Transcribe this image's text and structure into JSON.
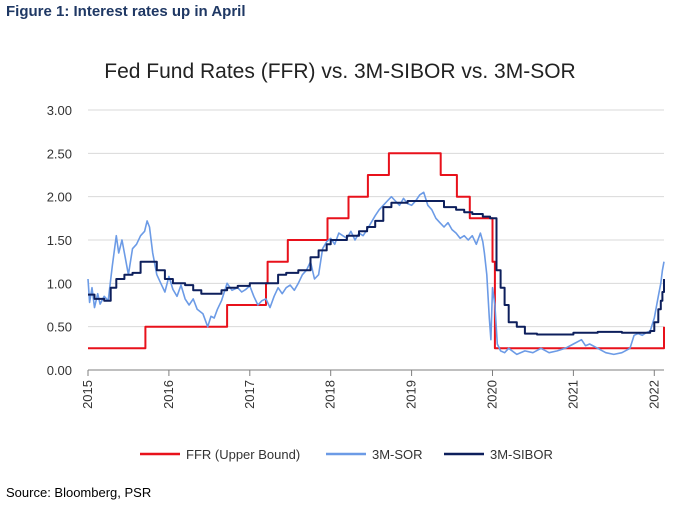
{
  "figure": {
    "title": "Figure 1: Interest rates up in April",
    "source": "Source: Bloomberg, PSR"
  },
  "chart_data": {
    "type": "line",
    "title": "Fed Fund Rates (FFR) vs. 3M-SIBOR vs. 3M-SOR",
    "xlabel": "",
    "ylabel": "",
    "xlim": [
      2015.0,
      2022.12
    ],
    "ylim": [
      0,
      3
    ],
    "y_ticks": [
      "0.00",
      "0.50",
      "1.00",
      "1.50",
      "2.00",
      "2.50",
      "3.00"
    ],
    "x_ticks": [
      "2015",
      "2016",
      "2017",
      "2018",
      "2019",
      "2020",
      "2021",
      "2022"
    ],
    "grid": "horizontal",
    "legend": "bottom",
    "series": [
      {
        "name": "FFR (Upper Bound)",
        "color": "#e8111b",
        "step": true,
        "points": [
          [
            2015.0,
            0.25
          ],
          [
            2015.71,
            0.5
          ],
          [
            2016.72,
            0.75
          ],
          [
            2017.0,
            0.75
          ],
          [
            2017.2,
            1.0
          ],
          [
            2017.22,
            1.25
          ],
          [
            2017.46,
            1.25
          ],
          [
            2017.47,
            1.5
          ],
          [
            2017.95,
            1.5
          ],
          [
            2017.96,
            1.75
          ],
          [
            2018.22,
            2.0
          ],
          [
            2018.46,
            2.25
          ],
          [
            2018.72,
            2.5
          ],
          [
            2019.35,
            2.5
          ],
          [
            2019.36,
            2.25
          ],
          [
            2019.56,
            2.0
          ],
          [
            2019.58,
            2.0
          ],
          [
            2019.72,
            1.75
          ],
          [
            2019.83,
            1.75
          ],
          [
            2019.97,
            1.75
          ],
          [
            2020.0,
            1.25
          ],
          [
            2020.03,
            0.25
          ],
          [
            2022.0,
            0.25
          ],
          [
            2022.12,
            0.5
          ]
        ]
      },
      {
        "name": "3M-SOR",
        "color": "#6c9be6",
        "step": false,
        "points": [
          [
            2015.0,
            1.05
          ],
          [
            2015.02,
            0.78
          ],
          [
            2015.05,
            0.95
          ],
          [
            2015.08,
            0.72
          ],
          [
            2015.12,
            0.88
          ],
          [
            2015.15,
            0.76
          ],
          [
            2015.2,
            0.85
          ],
          [
            2015.25,
            0.8
          ],
          [
            2015.3,
            1.2
          ],
          [
            2015.35,
            1.55
          ],
          [
            2015.38,
            1.35
          ],
          [
            2015.42,
            1.5
          ],
          [
            2015.46,
            1.3
          ],
          [
            2015.5,
            1.1
          ],
          [
            2015.55,
            1.4
          ],
          [
            2015.6,
            1.45
          ],
          [
            2015.65,
            1.55
          ],
          [
            2015.7,
            1.6
          ],
          [
            2015.73,
            1.72
          ],
          [
            2015.76,
            1.65
          ],
          [
            2015.8,
            1.35
          ],
          [
            2015.85,
            1.1
          ],
          [
            2015.9,
            1.0
          ],
          [
            2015.95,
            0.9
          ],
          [
            2016.0,
            1.08
          ],
          [
            2016.05,
            0.93
          ],
          [
            2016.1,
            0.85
          ],
          [
            2016.15,
            0.98
          ],
          [
            2016.2,
            0.82
          ],
          [
            2016.25,
            0.75
          ],
          [
            2016.3,
            0.82
          ],
          [
            2016.35,
            0.7
          ],
          [
            2016.42,
            0.65
          ],
          [
            2016.48,
            0.5
          ],
          [
            2016.52,
            0.62
          ],
          [
            2016.56,
            0.6
          ],
          [
            2016.6,
            0.7
          ],
          [
            2016.65,
            0.8
          ],
          [
            2016.72,
            1.0
          ],
          [
            2016.78,
            0.92
          ],
          [
            2016.85,
            0.95
          ],
          [
            2016.9,
            0.9
          ],
          [
            2016.95,
            0.93
          ],
          [
            2017.0,
            0.97
          ],
          [
            2017.05,
            0.85
          ],
          [
            2017.1,
            0.75
          ],
          [
            2017.15,
            0.8
          ],
          [
            2017.2,
            0.82
          ],
          [
            2017.25,
            0.72
          ],
          [
            2017.3,
            0.85
          ],
          [
            2017.35,
            0.95
          ],
          [
            2017.4,
            0.88
          ],
          [
            2017.45,
            0.95
          ],
          [
            2017.5,
            0.98
          ],
          [
            2017.55,
            0.92
          ],
          [
            2017.6,
            1.0
          ],
          [
            2017.65,
            1.1
          ],
          [
            2017.7,
            1.15
          ],
          [
            2017.75,
            1.25
          ],
          [
            2017.8,
            1.05
          ],
          [
            2017.85,
            1.1
          ],
          [
            2017.9,
            1.4
          ],
          [
            2017.95,
            1.48
          ],
          [
            2018.0,
            1.52
          ],
          [
            2018.05,
            1.45
          ],
          [
            2018.1,
            1.58
          ],
          [
            2018.15,
            1.55
          ],
          [
            2018.2,
            1.52
          ],
          [
            2018.25,
            1.6
          ],
          [
            2018.3,
            1.5
          ],
          [
            2018.35,
            1.58
          ],
          [
            2018.4,
            1.55
          ],
          [
            2018.45,
            1.62
          ],
          [
            2018.5,
            1.7
          ],
          [
            2018.55,
            1.78
          ],
          [
            2018.6,
            1.85
          ],
          [
            2018.65,
            1.9
          ],
          [
            2018.7,
            1.95
          ],
          [
            2018.75,
            2.0
          ],
          [
            2018.8,
            1.95
          ],
          [
            2018.85,
            1.9
          ],
          [
            2018.9,
            1.98
          ],
          [
            2018.95,
            1.92
          ],
          [
            2019.0,
            1.9
          ],
          [
            2019.05,
            1.95
          ],
          [
            2019.1,
            2.02
          ],
          [
            2019.15,
            2.05
          ],
          [
            2019.2,
            1.9
          ],
          [
            2019.25,
            1.85
          ],
          [
            2019.3,
            1.75
          ],
          [
            2019.35,
            1.7
          ],
          [
            2019.4,
            1.65
          ],
          [
            2019.45,
            1.7
          ],
          [
            2019.5,
            1.62
          ],
          [
            2019.55,
            1.58
          ],
          [
            2019.6,
            1.52
          ],
          [
            2019.65,
            1.55
          ],
          [
            2019.7,
            1.5
          ],
          [
            2019.75,
            1.55
          ],
          [
            2019.8,
            1.45
          ],
          [
            2019.85,
            1.58
          ],
          [
            2019.88,
            1.48
          ],
          [
            2019.9,
            1.35
          ],
          [
            2019.93,
            1.1
          ],
          [
            2019.96,
            0.6
          ],
          [
            2019.98,
            0.35
          ],
          [
            2020.0,
            0.95
          ],
          [
            2020.03,
            0.75
          ],
          [
            2020.06,
            0.3
          ],
          [
            2020.1,
            0.22
          ],
          [
            2020.15,
            0.2
          ],
          [
            2020.2,
            0.25
          ],
          [
            2020.3,
            0.18
          ],
          [
            2020.4,
            0.22
          ],
          [
            2020.5,
            0.2
          ],
          [
            2020.6,
            0.25
          ],
          [
            2020.7,
            0.2
          ],
          [
            2020.8,
            0.22
          ],
          [
            2020.9,
            0.25
          ],
          [
            2021.0,
            0.3
          ],
          [
            2021.1,
            0.35
          ],
          [
            2021.15,
            0.28
          ],
          [
            2021.2,
            0.3
          ],
          [
            2021.3,
            0.25
          ],
          [
            2021.4,
            0.2
          ],
          [
            2021.5,
            0.18
          ],
          [
            2021.6,
            0.2
          ],
          [
            2021.7,
            0.25
          ],
          [
            2021.75,
            0.4
          ],
          [
            2021.8,
            0.42
          ],
          [
            2021.85,
            0.4
          ],
          [
            2021.9,
            0.43
          ],
          [
            2021.95,
            0.45
          ],
          [
            2022.0,
            0.6
          ],
          [
            2022.05,
            0.85
          ],
          [
            2022.08,
            1.0
          ],
          [
            2022.1,
            1.15
          ],
          [
            2022.12,
            1.25
          ]
        ]
      },
      {
        "name": "3M-SIBOR",
        "color": "#0d1f5c",
        "step": true,
        "points": [
          [
            2015.0,
            0.87
          ],
          [
            2015.08,
            0.82
          ],
          [
            2015.2,
            0.8
          ],
          [
            2015.28,
            0.95
          ],
          [
            2015.35,
            1.05
          ],
          [
            2015.45,
            1.1
          ],
          [
            2015.55,
            1.12
          ],
          [
            2015.65,
            1.25
          ],
          [
            2015.8,
            1.25
          ],
          [
            2015.85,
            1.15
          ],
          [
            2015.95,
            1.05
          ],
          [
            2016.05,
            1.0
          ],
          [
            2016.2,
            0.98
          ],
          [
            2016.3,
            0.92
          ],
          [
            2016.4,
            0.88
          ],
          [
            2016.55,
            0.88
          ],
          [
            2016.65,
            0.92
          ],
          [
            2016.72,
            0.95
          ],
          [
            2016.85,
            0.97
          ],
          [
            2017.0,
            1.0
          ],
          [
            2017.15,
            1.0
          ],
          [
            2017.25,
            1.0
          ],
          [
            2017.35,
            1.1
          ],
          [
            2017.45,
            1.12
          ],
          [
            2017.6,
            1.15
          ],
          [
            2017.75,
            1.3
          ],
          [
            2017.85,
            1.38
          ],
          [
            2017.95,
            1.45
          ],
          [
            2018.0,
            1.5
          ],
          [
            2018.2,
            1.55
          ],
          [
            2018.35,
            1.6
          ],
          [
            2018.45,
            1.65
          ],
          [
            2018.55,
            1.72
          ],
          [
            2018.65,
            1.88
          ],
          [
            2018.75,
            1.93
          ],
          [
            2018.95,
            1.95
          ],
          [
            2019.1,
            1.95
          ],
          [
            2019.25,
            1.95
          ],
          [
            2019.4,
            1.88
          ],
          [
            2019.55,
            1.85
          ],
          [
            2019.65,
            1.82
          ],
          [
            2019.75,
            1.8
          ],
          [
            2019.88,
            1.77
          ],
          [
            2019.97,
            1.75
          ],
          [
            2020.05,
            1.15
          ],
          [
            2020.1,
            0.95
          ],
          [
            2020.15,
            0.75
          ],
          [
            2020.2,
            0.55
          ],
          [
            2020.3,
            0.5
          ],
          [
            2020.4,
            0.42
          ],
          [
            2020.55,
            0.41
          ],
          [
            2020.8,
            0.41
          ],
          [
            2021.0,
            0.43
          ],
          [
            2021.3,
            0.44
          ],
          [
            2021.6,
            0.43
          ],
          [
            2021.85,
            0.43
          ],
          [
            2021.95,
            0.45
          ],
          [
            2022.0,
            0.55
          ],
          [
            2022.05,
            0.7
          ],
          [
            2022.08,
            0.8
          ],
          [
            2022.1,
            0.9
          ],
          [
            2022.12,
            1.05
          ]
        ]
      }
    ]
  }
}
